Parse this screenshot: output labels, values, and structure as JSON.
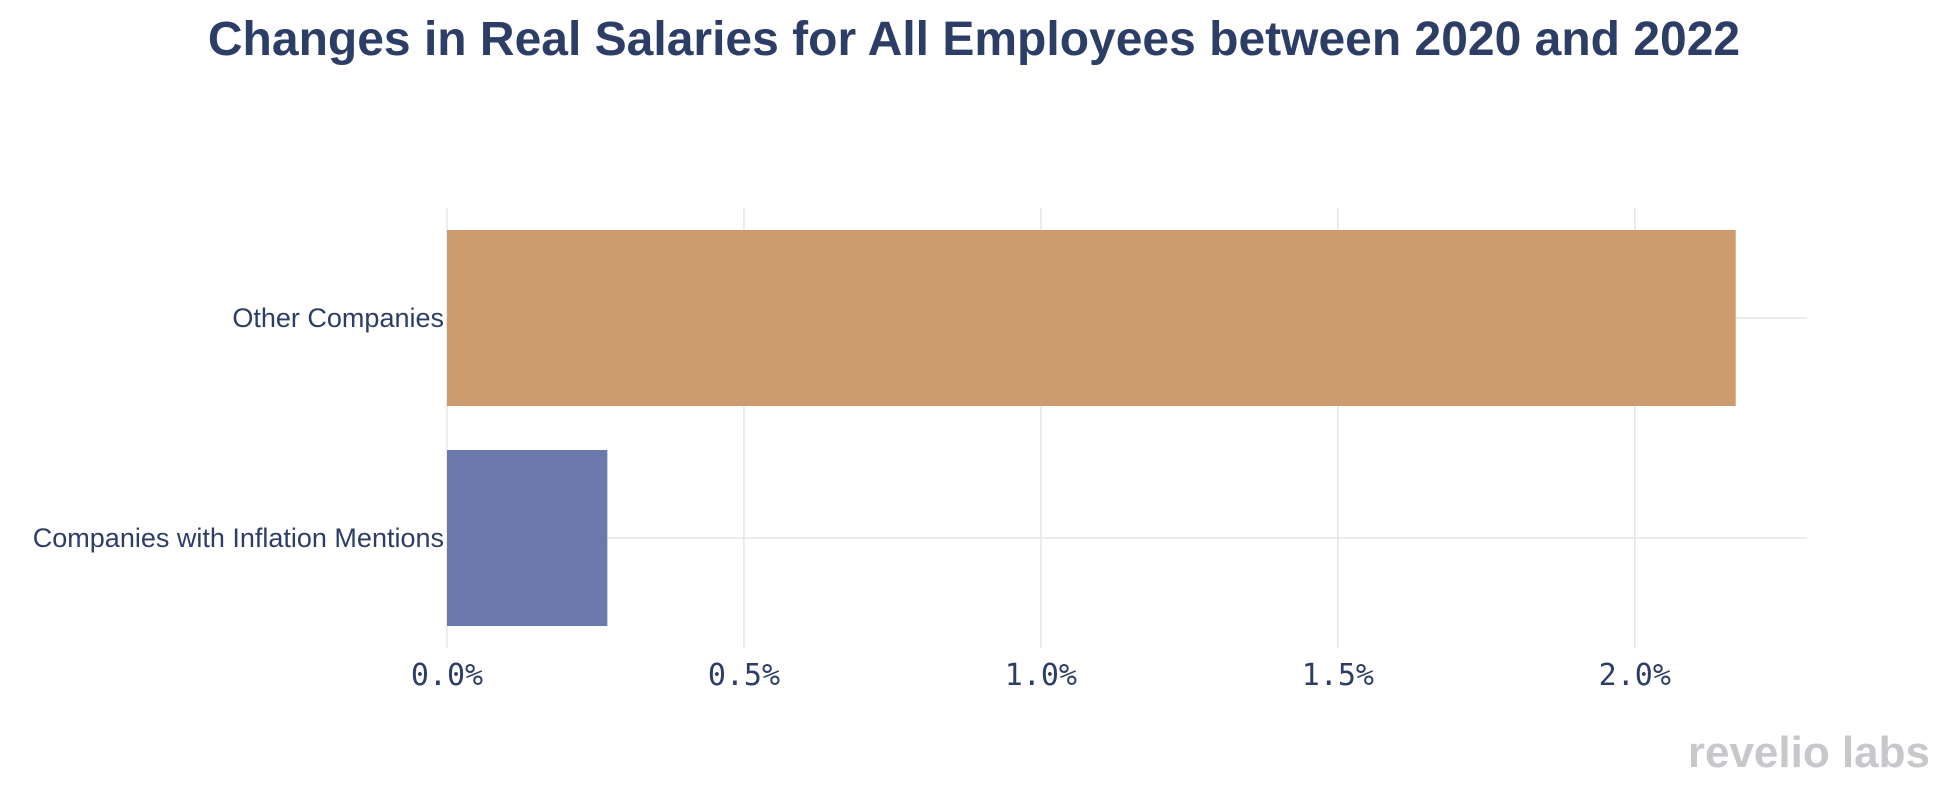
{
  "chart_data": {
    "type": "bar",
    "orientation": "horizontal",
    "title": "Changes in Real Salaries for All Employees between 2020 and 2022",
    "categories": [
      "Other Companies",
      "Companies with Inflation Mentions"
    ],
    "values": [
      2.17,
      0.27
    ],
    "colors": [
      "#cc9c6e",
      "#6c79ad"
    ],
    "xlim": [
      0,
      2.29
    ],
    "xticks": [
      0,
      0.5,
      1.0,
      1.5,
      2.0
    ],
    "xtick_labels": [
      "0.0%",
      "0.5%",
      "1.0%",
      "1.5%",
      "2.0%"
    ],
    "xlabel": "",
    "ylabel": "",
    "grid": true,
    "legend": "none"
  },
  "branding": {
    "watermark": "revelio labs"
  }
}
